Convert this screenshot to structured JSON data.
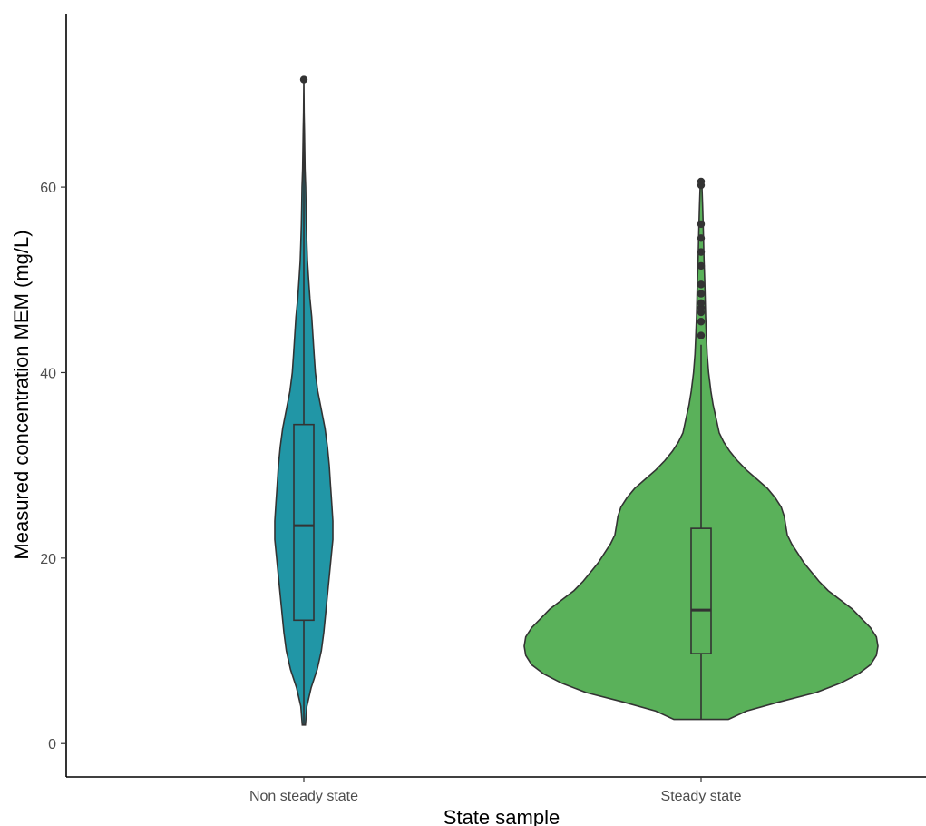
{
  "chart_data": {
    "type": "violin",
    "title": "",
    "xlabel": "State sample",
    "ylabel": "Measured concentration MEM (mg/L)",
    "ylim": [
      -3.6,
      78.7
    ],
    "y_ticks": [
      0,
      20,
      40,
      60
    ],
    "grid": false,
    "legend": "none",
    "categories": [
      "Non steady state",
      "Steady state"
    ],
    "series": [
      {
        "category": "Non steady state",
        "color": "#2196A6",
        "box": {
          "min": 2.0,
          "q1": 13.3,
          "median": 23.5,
          "q3": 34.4,
          "max": 67.0
        },
        "outliers": [
          71.6
        ],
        "density": [
          [
            2.0,
            0.025
          ],
          [
            4.0,
            0.05
          ],
          [
            6.0,
            0.12
          ],
          [
            8.0,
            0.22
          ],
          [
            10.0,
            0.29
          ],
          [
            12.0,
            0.33
          ],
          [
            14.0,
            0.36
          ],
          [
            16.0,
            0.39
          ],
          [
            18.0,
            0.42
          ],
          [
            20.0,
            0.45
          ],
          [
            22.0,
            0.48
          ],
          [
            24.0,
            0.48
          ],
          [
            26.0,
            0.46
          ],
          [
            28.0,
            0.44
          ],
          [
            30.0,
            0.42
          ],
          [
            32.0,
            0.39
          ],
          [
            34.0,
            0.35
          ],
          [
            36.0,
            0.29
          ],
          [
            38.0,
            0.23
          ],
          [
            40.0,
            0.19
          ],
          [
            42.0,
            0.17
          ],
          [
            44.0,
            0.15
          ],
          [
            46.0,
            0.13
          ],
          [
            48.0,
            0.1
          ],
          [
            50.0,
            0.08
          ],
          [
            52.0,
            0.06
          ],
          [
            54.0,
            0.05
          ],
          [
            56.0,
            0.04
          ],
          [
            58.0,
            0.035
          ],
          [
            60.0,
            0.03
          ],
          [
            62.0,
            0.02
          ],
          [
            64.0,
            0.015
          ],
          [
            66.0,
            0.01
          ],
          [
            68.0,
            0.005
          ],
          [
            71.6,
            0.0
          ]
        ]
      },
      {
        "category": "Steady state",
        "color": "#5AB15A",
        "box": {
          "min": 2.6,
          "q1": 9.7,
          "median": 14.4,
          "q3": 23.2,
          "max": 43.0
        },
        "outliers": [
          44.0,
          45.5,
          46.5,
          47.0,
          47.5,
          48.5,
          49.5,
          51.5,
          53.0,
          54.5,
          56.0,
          60.2,
          60.6
        ],
        "density": [
          [
            2.6,
            0.18
          ],
          [
            3.5,
            0.3
          ],
          [
            4.5,
            0.52
          ],
          [
            5.5,
            0.76
          ],
          [
            6.5,
            0.92
          ],
          [
            7.5,
            1.04
          ],
          [
            8.5,
            1.12
          ],
          [
            9.5,
            1.16
          ],
          [
            10.5,
            1.17
          ],
          [
            11.5,
            1.16
          ],
          [
            12.5,
            1.12
          ],
          [
            13.5,
            1.06
          ],
          [
            14.5,
            1.0
          ],
          [
            15.5,
            0.92
          ],
          [
            16.5,
            0.84
          ],
          [
            17.5,
            0.78
          ],
          [
            18.5,
            0.73
          ],
          [
            19.5,
            0.68
          ],
          [
            20.5,
            0.64
          ],
          [
            21.5,
            0.6
          ],
          [
            22.5,
            0.57
          ],
          [
            23.5,
            0.56
          ],
          [
            24.5,
            0.55
          ],
          [
            25.5,
            0.53
          ],
          [
            26.5,
            0.49
          ],
          [
            27.5,
            0.44
          ],
          [
            28.5,
            0.37
          ],
          [
            29.5,
            0.3
          ],
          [
            30.5,
            0.24
          ],
          [
            31.5,
            0.19
          ],
          [
            32.5,
            0.15
          ],
          [
            33.5,
            0.12
          ],
          [
            35.0,
            0.1
          ],
          [
            36.5,
            0.08
          ],
          [
            38.0,
            0.065
          ],
          [
            40.0,
            0.05
          ],
          [
            42.0,
            0.04
          ],
          [
            44.0,
            0.035
          ],
          [
            46.0,
            0.03
          ],
          [
            48.0,
            0.027
          ],
          [
            50.0,
            0.024
          ],
          [
            52.0,
            0.02
          ],
          [
            54.0,
            0.017
          ],
          [
            56.0,
            0.014
          ],
          [
            58.0,
            0.01
          ],
          [
            60.0,
            0.006
          ],
          [
            60.6,
            0.0
          ]
        ]
      }
    ]
  }
}
